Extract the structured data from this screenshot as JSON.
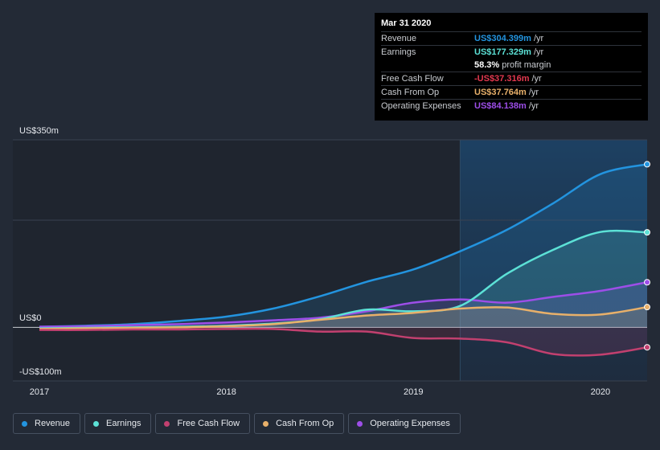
{
  "chart_data": {
    "type": "area",
    "title": "",
    "y_ticks": [
      {
        "value": 350,
        "label": "US$350m"
      },
      {
        "value": 0,
        "label": "US$0"
      },
      {
        "value": -100,
        "label": "-US$100m"
      }
    ],
    "ylim": [
      -100,
      350
    ],
    "xlim": [
      2017,
      2020.25
    ],
    "x_ticks": [
      {
        "value": 2017,
        "label": "2017"
      },
      {
        "value": 2018,
        "label": "2018"
      },
      {
        "value": 2019,
        "label": "2019"
      },
      {
        "value": 2020,
        "label": "2020"
      }
    ],
    "forecast_start": 2019.25,
    "series": [
      {
        "name": "Revenue",
        "color": "#2394df",
        "x": [
          2017,
          2017.25,
          2017.5,
          2017.75,
          2018,
          2018.25,
          2018.5,
          2018.75,
          2019,
          2019.25,
          2019.5,
          2019.75,
          2020,
          2020.25
        ],
        "values": [
          1,
          3,
          6,
          12,
          20,
          35,
          58,
          85,
          108,
          142,
          182,
          232,
          286,
          304.399
        ]
      },
      {
        "name": "Operating Expenses",
        "color": "#9d4ee8",
        "x": [
          2017,
          2017.25,
          2017.5,
          2017.75,
          2018,
          2018.25,
          2018.5,
          2018.75,
          2019,
          2019.25,
          2019.5,
          2019.75,
          2020,
          2020.25
        ],
        "values": [
          1,
          2,
          4,
          6,
          9,
          13,
          18,
          30,
          46,
          52,
          46,
          57,
          68,
          84.138
        ]
      },
      {
        "name": "Earnings",
        "color": "#5ce1d6",
        "x": [
          2017,
          2017.25,
          2017.5,
          2017.75,
          2018,
          2018.25,
          2018.5,
          2018.75,
          2019,
          2019.25,
          2019.5,
          2019.75,
          2020,
          2020.25
        ],
        "values": [
          -2,
          -1,
          0,
          1,
          3,
          7,
          15,
          33,
          30,
          40,
          100,
          145,
          178,
          177.329
        ]
      },
      {
        "name": "Cash From Op",
        "color": "#e8b06a",
        "x": [
          2017,
          2017.25,
          2017.5,
          2017.75,
          2018,
          2018.25,
          2018.5,
          2018.75,
          2019,
          2019.25,
          2019.5,
          2019.75,
          2020,
          2020.25
        ],
        "values": [
          -3,
          -2,
          -1,
          0,
          2,
          6,
          14,
          22,
          27,
          35,
          37,
          25,
          24,
          37.764
        ]
      },
      {
        "name": "Free Cash Flow",
        "color": "#c2406f",
        "x": [
          2017,
          2017.25,
          2017.5,
          2017.75,
          2018,
          2018.25,
          2018.5,
          2018.75,
          2019,
          2019.25,
          2019.5,
          2019.75,
          2020,
          2020.25
        ],
        "values": [
          -5,
          -5,
          -4,
          -4,
          -3,
          -3,
          -8,
          -8,
          -20,
          -21,
          -28,
          -50,
          -51,
          -37.316
        ]
      }
    ]
  },
  "tooltip": {
    "date": "Mar 31 2020",
    "rows": [
      {
        "label": "Revenue",
        "value": "US$304.399m",
        "unit": "/yr",
        "color": "#2394df"
      },
      {
        "label": "Earnings",
        "value": "US$177.329m",
        "unit": "/yr",
        "color": "#5ce1d6"
      },
      {
        "label": "",
        "value": "58.3%",
        "unit": "profit margin",
        "color": "#ffffff"
      },
      {
        "label": "Free Cash Flow",
        "value": "-US$37.316m",
        "unit": "/yr",
        "color": "#e3384f"
      },
      {
        "label": "Cash From Op",
        "value": "US$37.764m",
        "unit": "/yr",
        "color": "#e8b06a"
      },
      {
        "label": "Operating Expenses",
        "value": "US$84.138m",
        "unit": "/yr",
        "color": "#9d4ee8"
      }
    ]
  },
  "legend": [
    {
      "label": "Revenue",
      "color": "#2394df"
    },
    {
      "label": "Earnings",
      "color": "#5ce1d6"
    },
    {
      "label": "Free Cash Flow",
      "color": "#c2406f"
    },
    {
      "label": "Cash From Op",
      "color": "#e8b06a"
    },
    {
      "label": "Operating Expenses",
      "color": "#9d4ee8"
    }
  ]
}
